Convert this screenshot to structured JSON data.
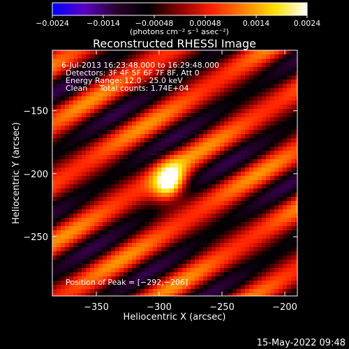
{
  "colorbar": {
    "ticks": [
      "-0.0024",
      "-0.0014",
      "-0.00048",
      "0.00048",
      "0.0014",
      "0.0024"
    ],
    "unit_label": "(photons cm⁻² s⁻¹ asec⁻²)",
    "colors": [
      "#0000ff",
      "#5a00c8",
      "#2a0030",
      "#000000",
      "#8a0000",
      "#ff2000",
      "#ff8000",
      "#ffe000",
      "#ffffff"
    ]
  },
  "chart_data": {
    "type": "heatmap",
    "title": "Reconstructed RHESSI Image",
    "xlabel": "Heliocentric X (arcsec)",
    "ylabel": "Heliocentric Y (arcsec)",
    "xlim": [
      -385,
      -190
    ],
    "ylim": [
      -297,
      -102
    ],
    "x_ticks": [
      {
        "value": -350,
        "label": "−350"
      },
      {
        "value": -300,
        "label": "−300"
      },
      {
        "value": -250,
        "label": "−250"
      },
      {
        "value": -200,
        "label": "−200"
      }
    ],
    "y_ticks": [
      {
        "value": -150,
        "label": "−150"
      },
      {
        "value": -200,
        "label": "−200"
      },
      {
        "value": -250,
        "label": "−250"
      }
    ],
    "annotations": [
      "6-Jul-2013 16:23:48.000 to 16:29:48.000",
      "Detectors: 3F 4F 5F 6F 7F 8F, Att 0",
      "Energy Range: 12.0 - 25.0 keV",
      "Clean     Total counts: 1.74E+04"
    ],
    "peak_label": "Position of Peak = [−292,−206]",
    "peak": [
      -292,
      -206
    ]
  },
  "footer": {
    "date": "15-May-2022 09:48"
  }
}
